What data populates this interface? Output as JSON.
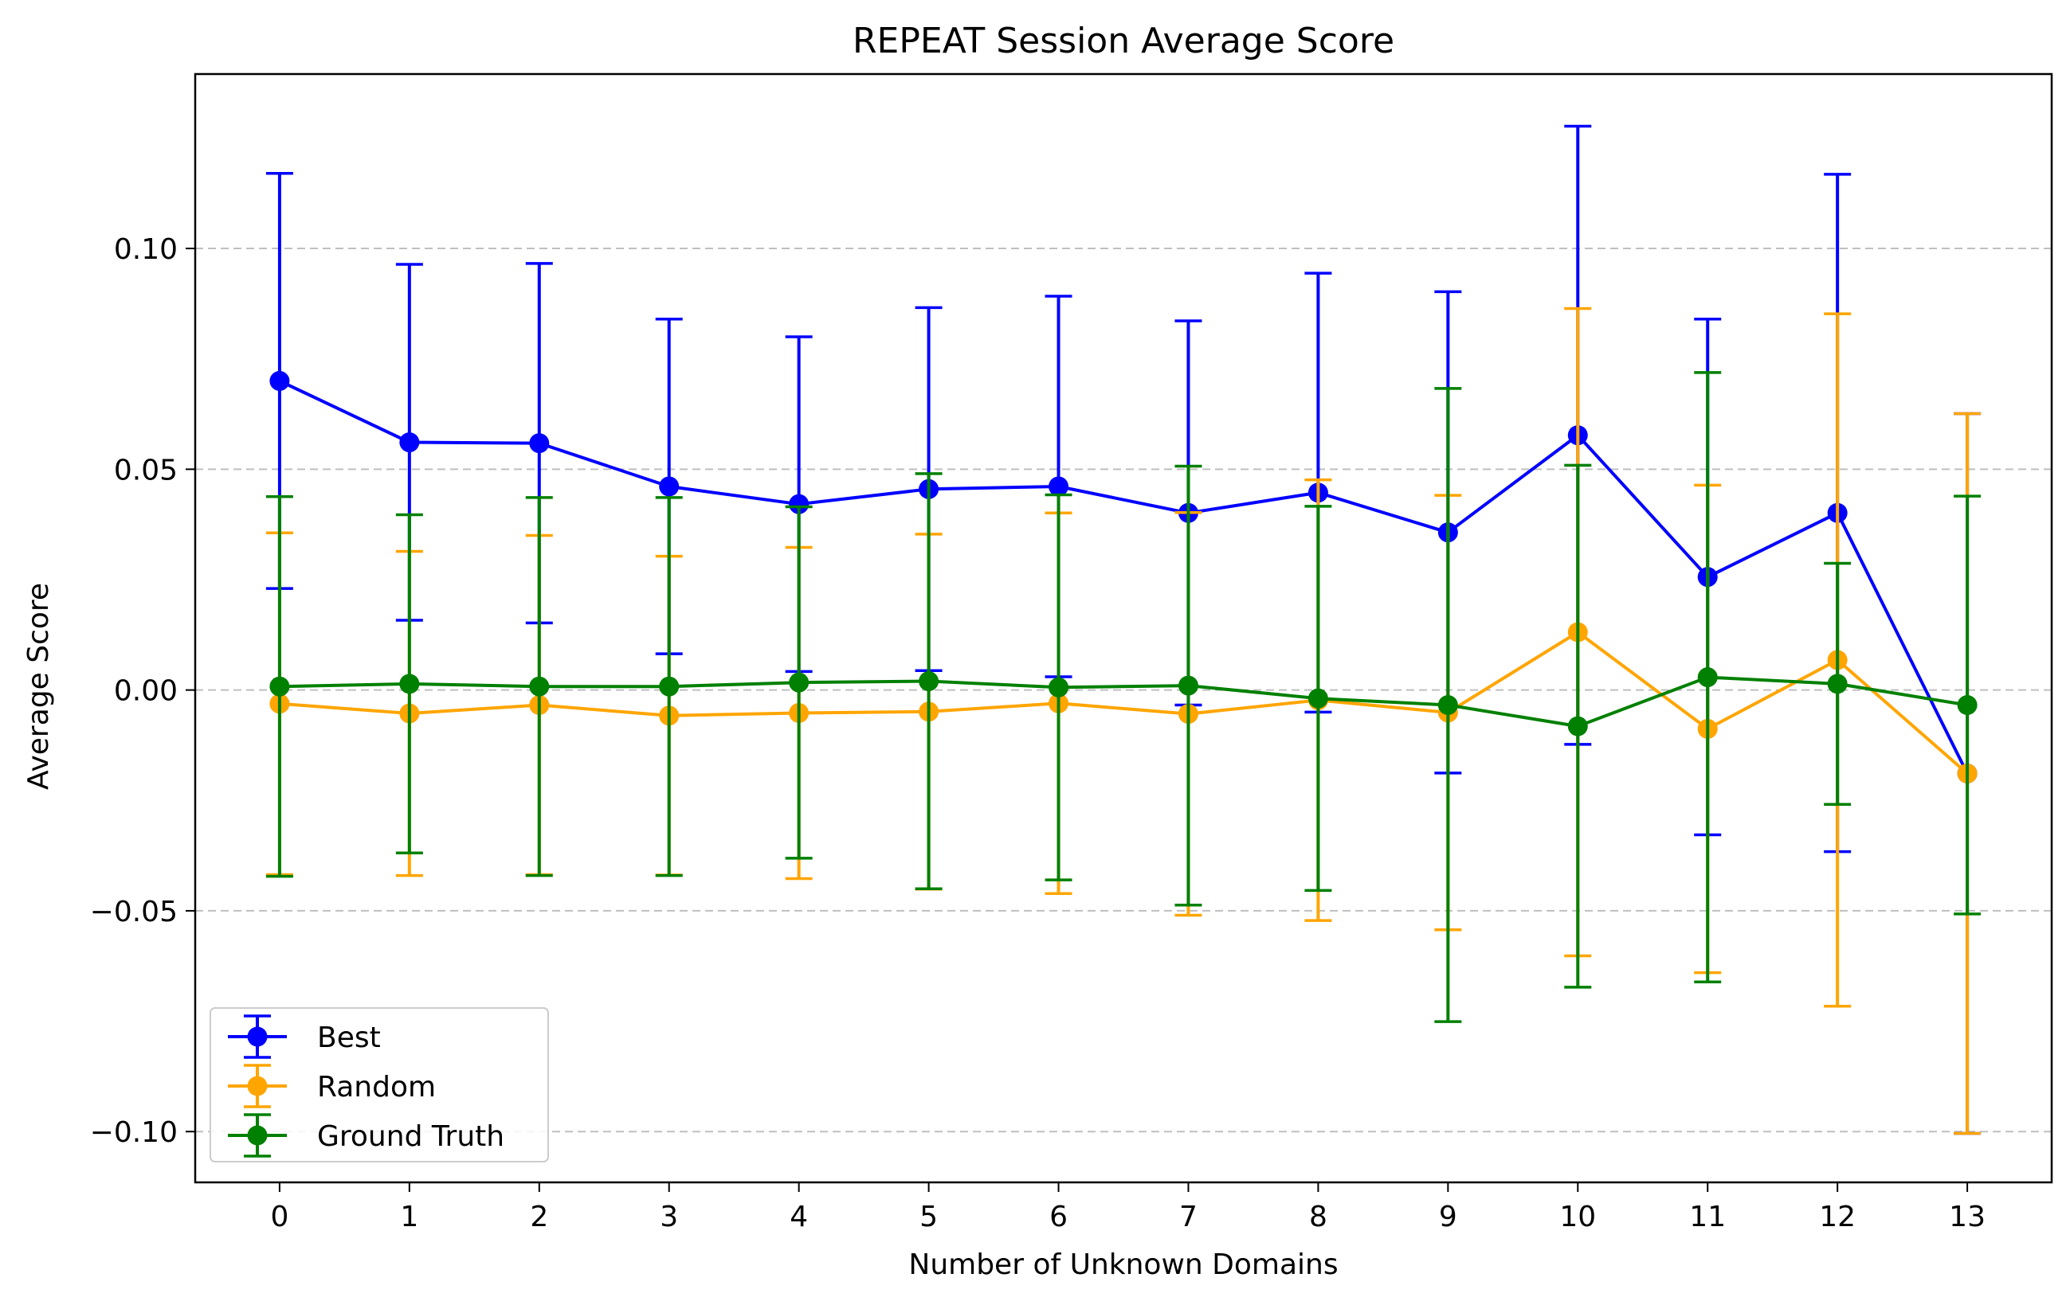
{
  "chart_data": {
    "type": "line",
    "title": "REPEAT Session Average Score",
    "xlabel": "Number of Unknown Domains",
    "ylabel": "Average Score",
    "x": [
      0,
      1,
      2,
      3,
      4,
      5,
      6,
      7,
      8,
      9,
      10,
      11,
      12,
      13
    ],
    "xlim": [
      -0.65,
      13.65
    ],
    "ylim": [
      -0.1115,
      0.1395
    ],
    "x_ticks": [
      "0",
      "1",
      "2",
      "3",
      "4",
      "5",
      "6",
      "7",
      "8",
      "9",
      "10",
      "11",
      "12",
      "13"
    ],
    "y_ticks": [
      -0.1,
      -0.05,
      0.0,
      0.05,
      0.1
    ],
    "y_tick_labels": [
      "−0.10",
      "−0.05",
      "0.00",
      "0.05",
      "0.10"
    ],
    "grid": "y-dashed",
    "legend_position": "lower-left",
    "error_bars": true,
    "series": [
      {
        "name": "Best",
        "color": "#0000ff",
        "values": [
          0.07,
          0.0561,
          0.0559,
          0.0461,
          0.0421,
          0.0455,
          0.0461,
          0.0401,
          0.0447,
          0.0357,
          0.0577,
          0.0256,
          0.0401,
          -0.0189
        ],
        "err": [
          0.047,
          0.0403,
          0.0407,
          0.0379,
          0.0379,
          0.0411,
          0.0431,
          0.0435,
          0.0497,
          0.0545,
          0.07,
          0.0584,
          0.0767,
          0.0815
        ]
      },
      {
        "name": "Random",
        "color": "#ffa500",
        "values": [
          -0.0031,
          -0.0053,
          -0.0034,
          -0.0058,
          -0.0052,
          -0.0049,
          -0.003,
          -0.0054,
          -0.0023,
          -0.0051,
          0.0131,
          -0.0088,
          0.0068,
          -0.0189
        ],
        "err": [
          0.0387,
          0.0367,
          0.0384,
          0.0361,
          0.0375,
          0.0402,
          0.0431,
          0.0456,
          0.0499,
          0.0492,
          0.0733,
          0.0552,
          0.0784,
          0.0815
        ]
      },
      {
        "name": "Ground Truth",
        "color": "#008000",
        "values": [
          0.0008,
          0.0014,
          0.0008,
          0.0008,
          0.0017,
          0.002,
          0.0006,
          0.001,
          -0.0019,
          -0.0034,
          -0.0082,
          0.0029,
          0.0014,
          -0.0034
        ],
        "err": [
          0.043,
          0.0383,
          0.0428,
          0.0428,
          0.0398,
          0.047,
          0.0436,
          0.0497,
          0.0435,
          0.0717,
          0.0591,
          0.069,
          0.0273,
          0.0473
        ]
      }
    ]
  }
}
